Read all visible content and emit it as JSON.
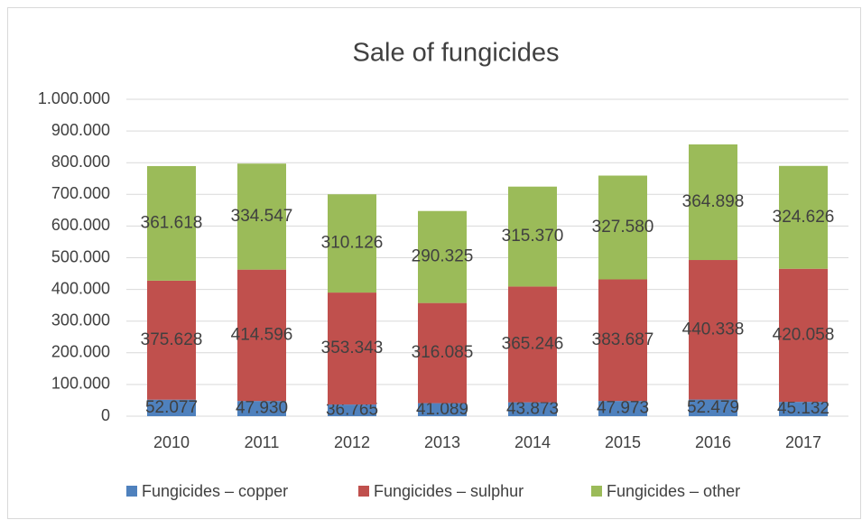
{
  "chart_data": {
    "type": "bar",
    "stacked": true,
    "title": "Sale of fungicides",
    "categories": [
      "2010",
      "2011",
      "2012",
      "2013",
      "2014",
      "2015",
      "2016",
      "2017"
    ],
    "series": [
      {
        "name": "Fungicides – copper",
        "color": "#4f81bd",
        "values": [
          52077,
          47930,
          36765,
          41089,
          43873,
          47973,
          52479,
          45132
        ],
        "value_labels": [
          "52.077",
          "47.930",
          "36.765",
          "41.089",
          "43.873",
          "47.973",
          "52.479",
          "45.132"
        ]
      },
      {
        "name": "Fungicides – sulphur",
        "color": "#c0504d",
        "values": [
          375628,
          414596,
          353343,
          316085,
          365246,
          383687,
          440338,
          420058
        ],
        "value_labels": [
          "375.628",
          "414.596",
          "353.343",
          "316.085",
          "365.246",
          "383.687",
          "440.338",
          "420.058"
        ]
      },
      {
        "name": "Fungicides – other",
        "color": "#9bbb59",
        "values": [
          361618,
          334547,
          310126,
          290325,
          315370,
          327580,
          364898,
          324626
        ],
        "value_labels": [
          "361.618",
          "334.547",
          "310.126",
          "290.325",
          "315.370",
          "327.580",
          "364.898",
          "324.626"
        ]
      }
    ],
    "ylim": [
      0,
      1000000
    ],
    "yticks": [
      0,
      {
        "value": 100000,
        "label": "100.000"
      },
      {
        "value": 200000,
        "label": "200.000"
      },
      {
        "value": 300000,
        "label": "300.000"
      },
      {
        "value": 400000,
        "label": "400.000"
      },
      {
        "value": 500000,
        "label": "500.000"
      },
      {
        "value": 600000,
        "label": "600.000"
      },
      {
        "value": 700000,
        "label": "700.000"
      },
      {
        "value": 800000,
        "label": "800.000"
      },
      {
        "value": 900000,
        "label": "900.000"
      },
      {
        "value": 1000000,
        "label": "1.000.000"
      }
    ],
    "grid": true,
    "legend": "bottom"
  }
}
